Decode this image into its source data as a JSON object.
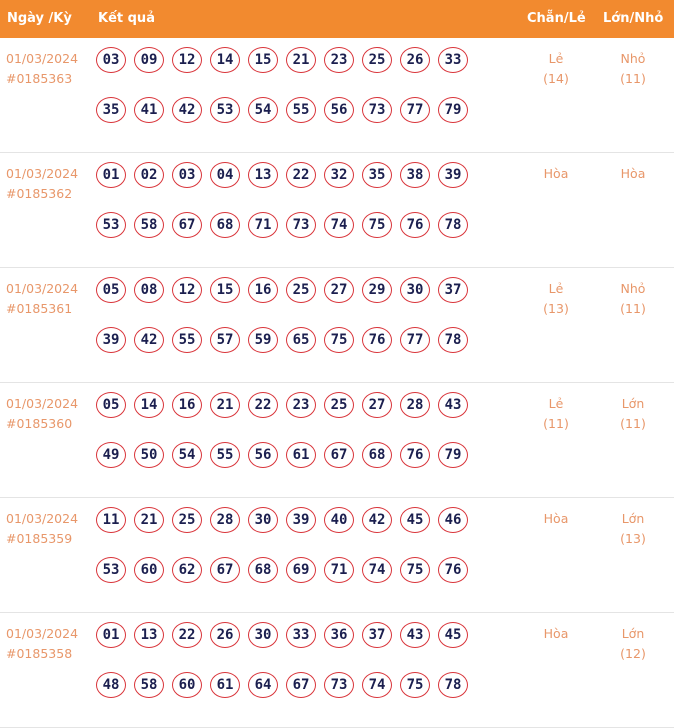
{
  "header": {
    "date": "Ngày /Kỳ",
    "result": "Kết quả",
    "even_odd": "Chẵn/Lẻ",
    "big_small": "Lớn/Nhỏ"
  },
  "rows": [
    {
      "date": "01/03/2024",
      "id": "#0185363",
      "numbers": [
        "03",
        "09",
        "12",
        "14",
        "15",
        "21",
        "23",
        "25",
        "26",
        "33",
        "35",
        "41",
        "42",
        "53",
        "54",
        "55",
        "56",
        "73",
        "77",
        "79"
      ],
      "even_odd": "Lẻ",
      "even_odd_count": "(14)",
      "big_small": "Nhỏ",
      "big_small_count": "(11)"
    },
    {
      "date": "01/03/2024",
      "id": "#0185362",
      "numbers": [
        "01",
        "02",
        "03",
        "04",
        "13",
        "22",
        "32",
        "35",
        "38",
        "39",
        "53",
        "58",
        "67",
        "68",
        "71",
        "73",
        "74",
        "75",
        "76",
        "78"
      ],
      "even_odd": "Hòa",
      "even_odd_count": "",
      "big_small": "Hòa",
      "big_small_count": ""
    },
    {
      "date": "01/03/2024",
      "id": "#0185361",
      "numbers": [
        "05",
        "08",
        "12",
        "15",
        "16",
        "25",
        "27",
        "29",
        "30",
        "37",
        "39",
        "42",
        "55",
        "57",
        "59",
        "65",
        "75",
        "76",
        "77",
        "78"
      ],
      "even_odd": "Lẻ",
      "even_odd_count": "(13)",
      "big_small": "Nhỏ",
      "big_small_count": "(11)"
    },
    {
      "date": "01/03/2024",
      "id": "#0185360",
      "numbers": [
        "05",
        "14",
        "16",
        "21",
        "22",
        "23",
        "25",
        "27",
        "28",
        "43",
        "49",
        "50",
        "54",
        "55",
        "56",
        "61",
        "67",
        "68",
        "76",
        "79"
      ],
      "even_odd": "Lẻ",
      "even_odd_count": "(11)",
      "big_small": "Lớn",
      "big_small_count": "(11)"
    },
    {
      "date": "01/03/2024",
      "id": "#0185359",
      "numbers": [
        "11",
        "21",
        "25",
        "28",
        "30",
        "39",
        "40",
        "42",
        "45",
        "46",
        "53",
        "60",
        "62",
        "67",
        "68",
        "69",
        "71",
        "74",
        "75",
        "76"
      ],
      "even_odd": "Hòa",
      "even_odd_count": "",
      "big_small": "Lớn",
      "big_small_count": "(13)"
    },
    {
      "date": "01/03/2024",
      "id": "#0185358",
      "numbers": [
        "01",
        "13",
        "22",
        "26",
        "30",
        "33",
        "36",
        "37",
        "43",
        "45",
        "48",
        "58",
        "60",
        "61",
        "64",
        "67",
        "73",
        "74",
        "75",
        "78"
      ],
      "even_odd": "Hòa",
      "even_odd_count": "",
      "big_small": "Lớn",
      "big_small_count": "(12)"
    }
  ]
}
